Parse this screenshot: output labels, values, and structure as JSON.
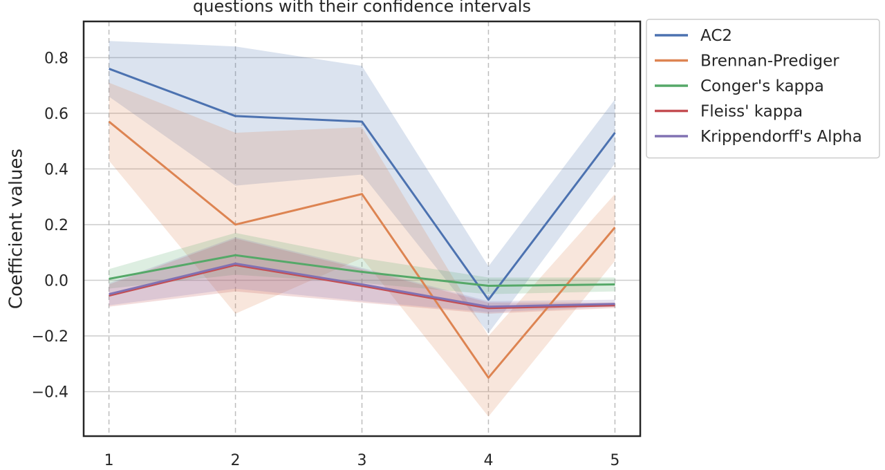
{
  "chart_data": {
    "type": "line",
    "title": "questions with their confidence intervals",
    "ylabel": "Coefficient values",
    "xlabel": "",
    "x": [
      1,
      2,
      3,
      4,
      5
    ],
    "x_tick_labels": [
      "1",
      "2",
      "3",
      "4",
      "5"
    ],
    "y_ticks": [
      0.8,
      0.6,
      0.4,
      0.2,
      0.0,
      -0.2,
      -0.4
    ],
    "y_tick_labels": [
      "0.8",
      "0.6",
      "0.4",
      "0.2",
      "0.0",
      "−0.2",
      "−0.4"
    ],
    "xlim": [
      0.8,
      5.2
    ],
    "ylim": [
      -0.56,
      0.93
    ],
    "grid": true,
    "legend_position": "outside right, top",
    "series": [
      {
        "name": "AC2",
        "color": "#4c72b0",
        "values": [
          0.76,
          0.59,
          0.57,
          -0.07,
          0.53
        ],
        "lower": [
          0.66,
          0.34,
          0.38,
          -0.19,
          0.42
        ],
        "upper": [
          0.86,
          0.84,
          0.77,
          0.05,
          0.65
        ]
      },
      {
        "name": "Brennan-Prediger",
        "color": "#dd8452",
        "values": [
          0.57,
          0.2,
          0.31,
          -0.35,
          0.19
        ],
        "lower": [
          0.43,
          -0.12,
          0.08,
          -0.49,
          0.07
        ],
        "upper": [
          0.71,
          0.53,
          0.55,
          -0.2,
          0.31
        ]
      },
      {
        "name": "Conger's kappa",
        "color": "#55a868",
        "values": [
          0.005,
          0.09,
          0.03,
          -0.02,
          -0.015
        ],
        "lower": [
          -0.03,
          0.02,
          -0.01,
          -0.05,
          -0.04
        ],
        "upper": [
          0.04,
          0.17,
          0.08,
          0.01,
          0.01
        ]
      },
      {
        "name": "Fleiss' kappa",
        "color": "#c44e52",
        "values": [
          -0.055,
          0.055,
          -0.02,
          -0.1,
          -0.09
        ],
        "lower": [
          -0.095,
          -0.04,
          -0.08,
          -0.12,
          -0.1
        ],
        "upper": [
          -0.015,
          0.15,
          0.04,
          -0.08,
          -0.08
        ]
      },
      {
        "name": "Krippendorff's Alpha",
        "color": "#8172b3",
        "values": [
          -0.05,
          0.06,
          -0.015,
          -0.095,
          -0.085
        ],
        "lower": [
          -0.09,
          -0.03,
          -0.075,
          -0.115,
          -0.095
        ],
        "upper": [
          -0.01,
          0.155,
          0.045,
          -0.075,
          -0.07
        ]
      }
    ]
  }
}
